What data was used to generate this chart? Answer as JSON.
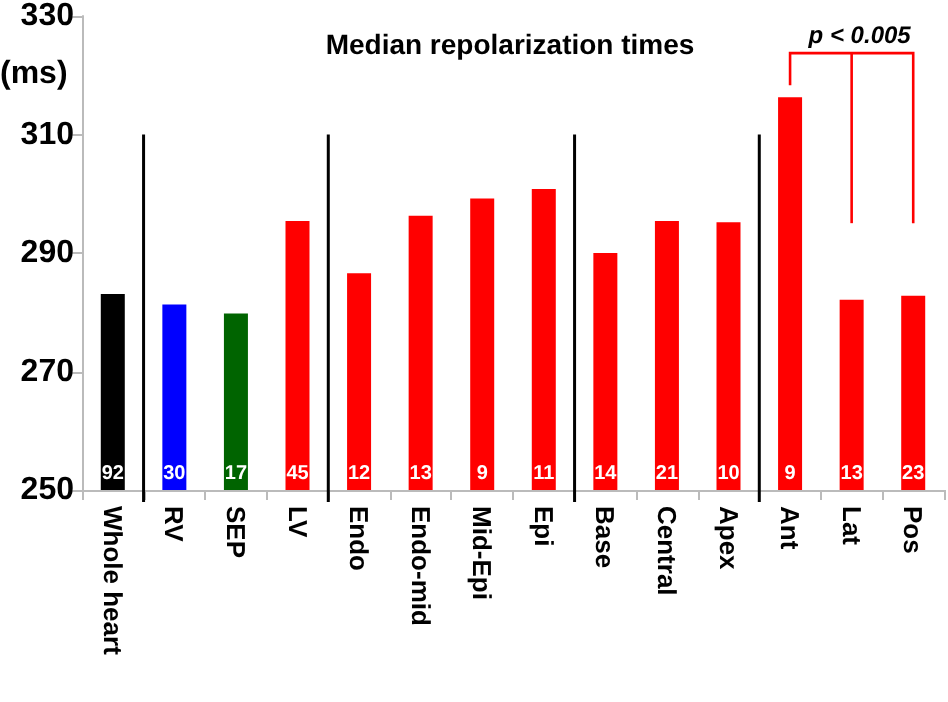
{
  "chart_data": {
    "type": "bar",
    "title": "Median repolarization times",
    "ylabel": "(ms)",
    "categories": [
      "Whole heart",
      "RV",
      "SEP",
      "LV",
      "Endo",
      "Endo-mid",
      "Mid-Epi",
      "Epi",
      "Base",
      "Central",
      "Apex",
      "Ant",
      "Lat",
      "Pos"
    ],
    "values": [
      283.1,
      281.3,
      279.8,
      295.4,
      286.6,
      296.3,
      299.2,
      300.8,
      290,
      295.4,
      295.2,
      316.3,
      282.1,
      282.8
    ],
    "colors": [
      "#000000",
      "#0000ff",
      "#006400",
      "#ff0000",
      "#ff0000",
      "#ff0000",
      "#ff0000",
      "#ff0000",
      "#ff0000",
      "#ff0000",
      "#ff0000",
      "#ff0000",
      "#ff0000",
      "#ff0000"
    ],
    "annotations": [
      "p < 0.005",
      "92",
      "30",
      "17",
      "45",
      "12",
      "13",
      "9",
      "11",
      "14",
      "21",
      "10",
      "9",
      "13",
      "23"
    ],
    "ylim": [
      250,
      330
    ],
    "yticks": [
      250,
      270,
      290,
      310,
      330
    ],
    "grid": false
  }
}
